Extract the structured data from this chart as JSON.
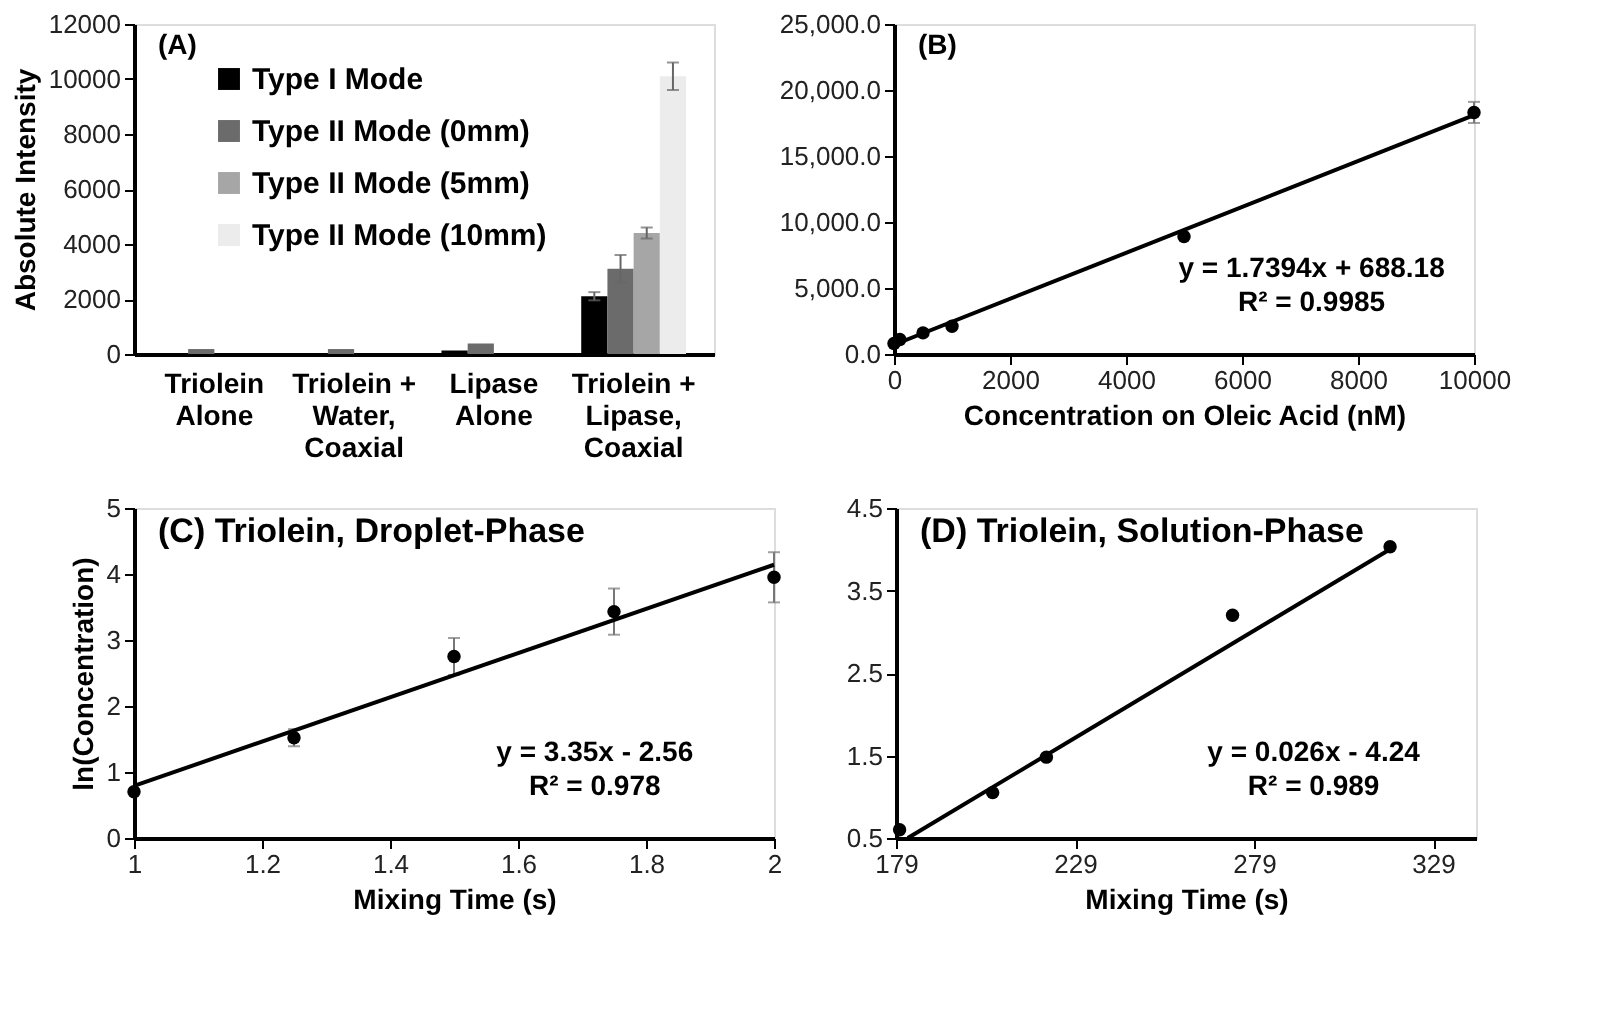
{
  "chart_data": [
    {
      "type": "bar",
      "title": "(A)",
      "ylabel": "Absolute Intensity",
      "categories": [
        "Triolein\nAlone",
        "Triolein +\nWater,\nCoaxial",
        "Lipase\nAlone",
        "Triolein +\nLipase,\nCoaxial"
      ],
      "series": [
        {
          "name": "Type I Mode",
          "color": "#000000",
          "values": [
            0,
            0,
            130,
            2100
          ],
          "errors": [
            null,
            null,
            null,
            150
          ]
        },
        {
          "name": "Type II Mode (0mm)",
          "color": "#6b6b6b",
          "values": [
            180,
            180,
            380,
            3100
          ],
          "errors": [
            null,
            null,
            null,
            500
          ]
        },
        {
          "name": "Type II Mode (5mm)",
          "color": "#a6a6a6",
          "values": [
            null,
            null,
            null,
            4400
          ],
          "errors": [
            null,
            null,
            null,
            200
          ]
        },
        {
          "name": "Type II Mode (10mm)",
          "color": "#ececec",
          "values": [
            0,
            0,
            null,
            10100
          ],
          "errors": [
            null,
            null,
            null,
            500
          ]
        }
      ],
      "ylim": [
        0,
        12000
      ],
      "yticks": [
        0,
        2000,
        4000,
        6000,
        8000,
        10000,
        12000
      ],
      "legend": "top left",
      "grid": false
    },
    {
      "type": "scatter",
      "title": "(B)",
      "xlabel": "Concentration on Oleic Acid (nM)",
      "marker": "circle",
      "series": [
        {
          "type": "scatter",
          "color": "#000000",
          "x": [
            0,
            100,
            500,
            1000,
            5000,
            10000
          ],
          "values": [
            800,
            1100,
            1600,
            2100,
            8900,
            18300
          ],
          "errors": [
            null,
            null,
            null,
            null,
            null,
            800
          ]
        },
        {
          "type": "line",
          "color": "#000000",
          "marker": "none",
          "x": [
            0,
            10000
          ],
          "values": [
            700,
            18100
          ]
        }
      ],
      "xlim": [
        0,
        10000
      ],
      "xticks": [
        0,
        2000,
        4000,
        6000,
        8000,
        10000
      ],
      "ylim": [
        0,
        25000
      ],
      "yticks": [
        {
          "value": 0,
          "label": "0.0"
        },
        {
          "value": 5000,
          "label": "5,000.0"
        },
        {
          "value": 10000,
          "label": "10,000.0"
        },
        {
          "value": 15000,
          "label": "15,000.0"
        },
        {
          "value": 20000,
          "label": "20,000.0"
        },
        {
          "value": 25000,
          "label": "25,000.0"
        }
      ],
      "annotations": [
        "y = 1.7394x + 688.18",
        "R² = 0.9985"
      ],
      "grid": false
    },
    {
      "type": "scatter",
      "title": "(C) Triolein, Droplet-Phase",
      "xlabel": "Mixing Time (s)",
      "ylabel": "ln(Concentration)",
      "marker": "circle",
      "series": [
        {
          "type": "scatter",
          "color": "#000000",
          "x": [
            1,
            1.25,
            1.5,
            1.75,
            2
          ],
          "values": [
            0.7,
            1.52,
            2.75,
            3.43,
            3.95
          ],
          "errors": [
            null,
            0.13,
            0.28,
            0.35,
            0.38
          ]
        },
        {
          "type": "line",
          "color": "#000000",
          "marker": "none",
          "x": [
            1,
            2
          ],
          "values": [
            0.79,
            4.14
          ]
        }
      ],
      "xlim": [
        1,
        2
      ],
      "xticks": [
        1,
        1.2,
        1.4,
        1.6,
        1.8,
        2
      ],
      "ylim": [
        0,
        5
      ],
      "yticks": [
        0,
        1,
        2,
        3,
        4,
        5
      ],
      "annotations": [
        "y = 3.35x - 2.56",
        "R² = 0.978"
      ],
      "grid": false
    },
    {
      "type": "scatter",
      "title": "(D) Triolein, Solution-Phase",
      "xlabel": "Mixing Time (s)",
      "marker": "circle",
      "series": [
        {
          "type": "scatter",
          "color": "#000000",
          "x": [
            180,
            206,
            221,
            273,
            317
          ],
          "values": [
            0.6,
            1.05,
            1.48,
            3.2,
            4.03
          ]
        },
        {
          "type": "line",
          "color": "#000000",
          "marker": "none",
          "x": [
            182.3,
            317
          ],
          "values": [
            0.5,
            4.0
          ]
        }
      ],
      "xlim": [
        179,
        341
      ],
      "xticks": [
        179,
        229,
        279,
        329
      ],
      "ylim": [
        0.5,
        4.5
      ],
      "yticks": [
        0.5,
        1.5,
        2.5,
        3.5,
        4.5
      ],
      "annotations": [
        "y = 0.026x - 4.24",
        "R² = 0.989"
      ],
      "grid": false
    }
  ]
}
